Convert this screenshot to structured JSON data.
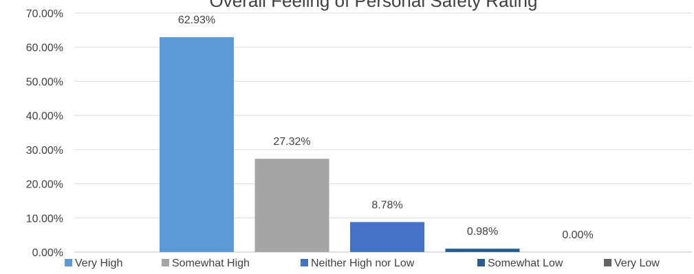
{
  "chart_data": {
    "type": "bar",
    "title": "Overall Feeling of Personal Safety Rating",
    "categories": [
      "Very High",
      "Somewhat High",
      "Neither High nor Low",
      "Somewhat Low",
      "Very Low"
    ],
    "values": [
      62.93,
      27.32,
      8.78,
      0.98,
      0.0
    ],
    "data_labels": [
      "62.93%",
      "27.32%",
      "8.78%",
      "0.98%",
      "0.00%"
    ],
    "colors": [
      "#5B9BD5",
      "#A5A5A5",
      "#4472C4",
      "#255E91",
      "#636363"
    ],
    "ylim": [
      0,
      70
    ],
    "y_ticks": [
      0,
      10,
      20,
      30,
      40,
      50,
      60,
      70
    ],
    "y_tick_labels": [
      "0.00%",
      "10.00%",
      "20.00%",
      "30.00%",
      "40.00%",
      "50.00%",
      "60.00%",
      "70.00%"
    ],
    "grid": true,
    "legend_position": "bottom"
  }
}
